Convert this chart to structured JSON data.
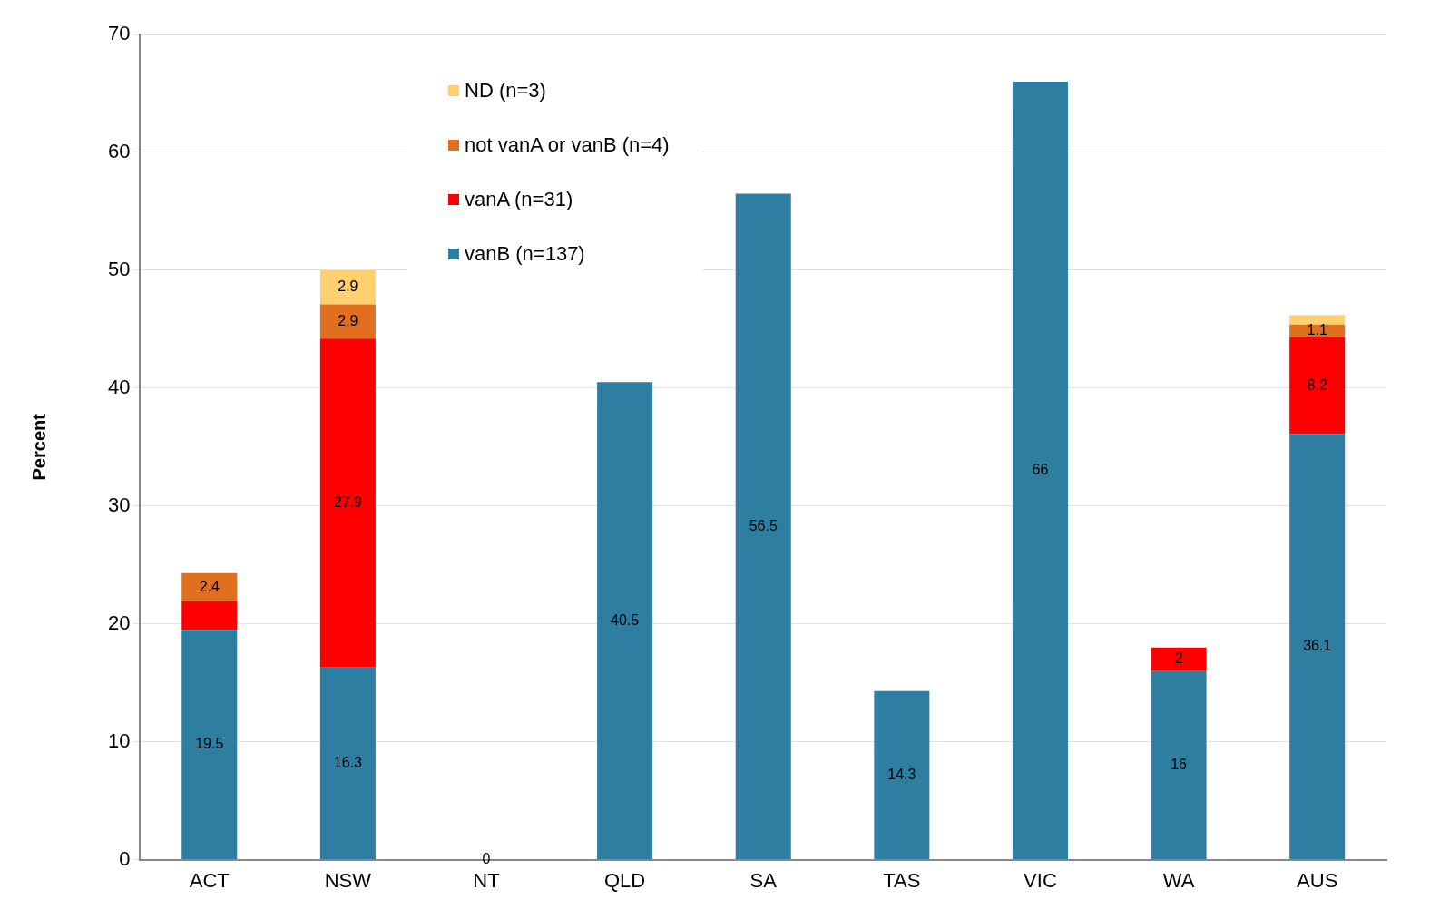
{
  "chart_data": {
    "type": "bar",
    "stacked": true,
    "ylabel": "Percent",
    "categories": [
      "ACT",
      "NSW",
      "NT",
      "QLD",
      "SA",
      "TAS",
      "VIC",
      "WA",
      "AUS"
    ],
    "series": [
      {
        "name": "vanB (n=137)",
        "color": "#2e7ea1",
        "values": [
          19.5,
          16.3,
          0,
          40.5,
          56.5,
          14.3,
          66,
          16,
          36.1
        ],
        "value_labels": [
          "19.5",
          "16.3",
          "0",
          "40.5",
          "56.5",
          "14.3",
          "66",
          "16",
          "36.1"
        ]
      },
      {
        "name": "vanA (n=31)",
        "color": "#ff0000",
        "values": [
          2.4,
          27.9,
          null,
          null,
          null,
          null,
          null,
          2,
          8.2
        ],
        "value_labels": [
          null,
          "27.9",
          null,
          null,
          null,
          null,
          null,
          "2",
          "8.2"
        ]
      },
      {
        "name": "not vanA or vanB (n=4)",
        "color": "#e07020",
        "values": [
          2.4,
          2.9,
          null,
          null,
          null,
          null,
          null,
          null,
          1.1
        ],
        "value_labels": [
          "2.4",
          "2.9",
          null,
          null,
          null,
          null,
          null,
          null,
          "1.1"
        ]
      },
      {
        "name": "ND (n=3)",
        "color": "#ffd070",
        "values": [
          null,
          2.9,
          null,
          null,
          null,
          null,
          null,
          null,
          0.8
        ],
        "value_labels": [
          null,
          "2.9",
          null,
          null,
          null,
          null,
          null,
          null,
          null
        ]
      }
    ],
    "ylim": [
      0,
      70
    ],
    "yticks": [
      0,
      10,
      20,
      30,
      40,
      50,
      60,
      70
    ],
    "grid": "y",
    "legend": "top left"
  }
}
